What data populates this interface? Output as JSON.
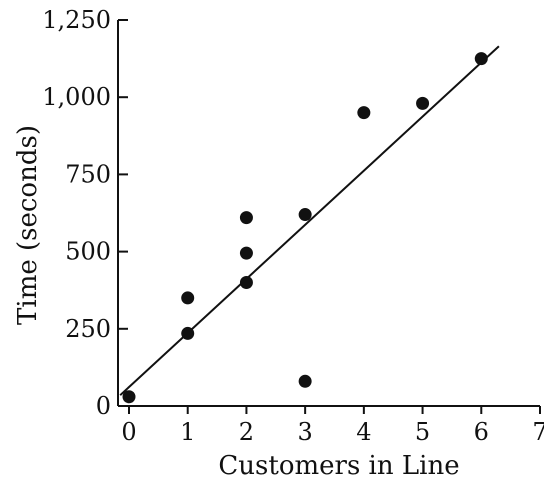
{
  "chart_data": {
    "type": "scatter",
    "title": "",
    "xlabel": "Customers in Line",
    "ylabel": "Time (seconds)",
    "xlim": [
      0,
      7
    ],
    "ylim": [
      0,
      1250
    ],
    "xticks": [
      0,
      1,
      2,
      3,
      4,
      5,
      6,
      7
    ],
    "xtick_labels": [
      "0",
      "1",
      "2",
      "3",
      "4",
      "5",
      "6",
      "7"
    ],
    "yticks": [
      0,
      250,
      500,
      750,
      1000,
      1250
    ],
    "ytick_labels": [
      "0",
      "250",
      "500",
      "750",
      "1,000",
      "1,250"
    ],
    "grid": false,
    "points": [
      {
        "x": 0,
        "y": 30
      },
      {
        "x": 1,
        "y": 350
      },
      {
        "x": 1,
        "y": 235
      },
      {
        "x": 2,
        "y": 610
      },
      {
        "x": 2,
        "y": 495
      },
      {
        "x": 2,
        "y": 400
      },
      {
        "x": 3,
        "y": 620
      },
      {
        "x": 3,
        "y": 80
      },
      {
        "x": 4,
        "y": 950
      },
      {
        "x": 5,
        "y": 980
      },
      {
        "x": 6,
        "y": 1125
      }
    ],
    "trend_line": {
      "x1": -0.15,
      "y1": 35,
      "x2": 6.3,
      "y2": 1165
    }
  }
}
